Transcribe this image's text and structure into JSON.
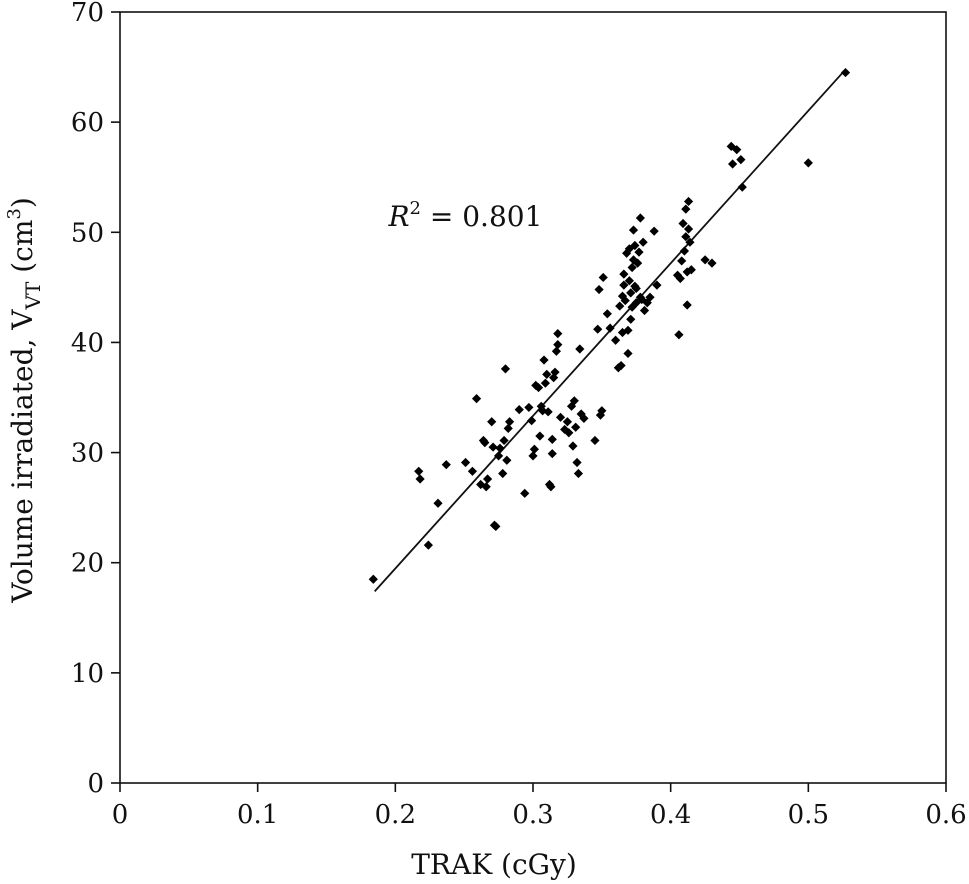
{
  "chart_data": {
    "type": "scatter",
    "title": "",
    "xlabel": "TRAK (cGy)",
    "ylabel_main": "Volume irradiated, V",
    "ylabel_sub": "VT",
    "ylabel_unit_open": " (cm",
    "ylabel_unit_sup": "3",
    "ylabel_unit_close": ")",
    "xlim": [
      0,
      0.6
    ],
    "ylim": [
      0,
      70
    ],
    "xticks": [
      0,
      0.1,
      0.2,
      0.3,
      0.4,
      0.5,
      0.6
    ],
    "xtick_labels": [
      "0",
      "0.1",
      "0.2",
      "0.3",
      "0.4",
      "0.5",
      "0.6"
    ],
    "yticks": [
      0,
      10,
      20,
      30,
      40,
      50,
      60,
      70
    ],
    "ytick_labels": [
      "0",
      "10",
      "20",
      "30",
      "40",
      "50",
      "60",
      "70"
    ],
    "grid": false,
    "annotation": {
      "r_symbol": "R",
      "r_sup": "2",
      "text": " = 0.801",
      "x": 0.195,
      "y": 51.5
    },
    "trendline": {
      "x": [
        0.185,
        0.525
      ],
      "y": [
        17.4,
        64.5
      ]
    },
    "points": [
      [
        0.184,
        18.5
      ],
      [
        0.217,
        28.3
      ],
      [
        0.218,
        27.6
      ],
      [
        0.224,
        21.6
      ],
      [
        0.231,
        25.4
      ],
      [
        0.237,
        28.9
      ],
      [
        0.251,
        29.1
      ],
      [
        0.256,
        28.3
      ],
      [
        0.259,
        34.9
      ],
      [
        0.262,
        27.1
      ],
      [
        0.264,
        31.1
      ],
      [
        0.265,
        30.9
      ],
      [
        0.266,
        26.9
      ],
      [
        0.267,
        27.6
      ],
      [
        0.27,
        32.8
      ],
      [
        0.271,
        30.5
      ],
      [
        0.272,
        23.4
      ],
      [
        0.273,
        23.3
      ],
      [
        0.275,
        29.7
      ],
      [
        0.276,
        30.4
      ],
      [
        0.278,
        28.1
      ],
      [
        0.279,
        31.1
      ],
      [
        0.28,
        37.6
      ],
      [
        0.281,
        29.3
      ],
      [
        0.282,
        32.2
      ],
      [
        0.283,
        32.8
      ],
      [
        0.29,
        33.9
      ],
      [
        0.294,
        26.3
      ],
      [
        0.297,
        34.1
      ],
      [
        0.299,
        32.9
      ],
      [
        0.3,
        29.7
      ],
      [
        0.301,
        30.3
      ],
      [
        0.302,
        36.1
      ],
      [
        0.304,
        35.9
      ],
      [
        0.305,
        31.5
      ],
      [
        0.306,
        34.2
      ],
      [
        0.307,
        33.8
      ],
      [
        0.308,
        38.4
      ],
      [
        0.309,
        36.3
      ],
      [
        0.31,
        37.1
      ],
      [
        0.311,
        33.7
      ],
      [
        0.312,
        27.1
      ],
      [
        0.313,
        26.9
      ],
      [
        0.314,
        29.9
      ],
      [
        0.314,
        31.2
      ],
      [
        0.315,
        36.8
      ],
      [
        0.316,
        37.3
      ],
      [
        0.317,
        39.2
      ],
      [
        0.318,
        39.8
      ],
      [
        0.318,
        40.8
      ],
      [
        0.32,
        33.2
      ],
      [
        0.323,
        32.1
      ],
      [
        0.325,
        32.8
      ],
      [
        0.326,
        31.8
      ],
      [
        0.328,
        34.2
      ],
      [
        0.329,
        30.6
      ],
      [
        0.33,
        34.7
      ],
      [
        0.331,
        32.3
      ],
      [
        0.332,
        29.1
      ],
      [
        0.333,
        28.1
      ],
      [
        0.334,
        39.4
      ],
      [
        0.335,
        33.5
      ],
      [
        0.337,
        33.1
      ],
      [
        0.345,
        31.1
      ],
      [
        0.347,
        41.2
      ],
      [
        0.348,
        44.8
      ],
      [
        0.349,
        33.4
      ],
      [
        0.35,
        33.8
      ],
      [
        0.351,
        45.9
      ],
      [
        0.354,
        42.6
      ],
      [
        0.356,
        41.3
      ],
      [
        0.36,
        40.2
      ],
      [
        0.362,
        37.7
      ],
      [
        0.363,
        43.3
      ],
      [
        0.364,
        37.9
      ],
      [
        0.365,
        40.9
      ],
      [
        0.365,
        44.2
      ],
      [
        0.366,
        45.2
      ],
      [
        0.366,
        46.2
      ],
      [
        0.367,
        43.8
      ],
      [
        0.368,
        48.1
      ],
      [
        0.369,
        41.1
      ],
      [
        0.369,
        39.0
      ],
      [
        0.37,
        45.6
      ],
      [
        0.37,
        48.5
      ],
      [
        0.371,
        42.1
      ],
      [
        0.371,
        44.5
      ],
      [
        0.372,
        43.2
      ],
      [
        0.372,
        46.8
      ],
      [
        0.373,
        50.2
      ],
      [
        0.373,
        47.5
      ],
      [
        0.374,
        45.1
      ],
      [
        0.374,
        48.8
      ],
      [
        0.375,
        43.6
      ],
      [
        0.375,
        44.9
      ],
      [
        0.376,
        47.2
      ],
      [
        0.377,
        48.2
      ],
      [
        0.378,
        51.3
      ],
      [
        0.378,
        44.1
      ],
      [
        0.379,
        43.9
      ],
      [
        0.38,
        49.1
      ],
      [
        0.381,
        42.9
      ],
      [
        0.383,
        43.6
      ],
      [
        0.385,
        44.1
      ],
      [
        0.388,
        50.1
      ],
      [
        0.39,
        45.2
      ],
      [
        0.405,
        46.1
      ],
      [
        0.406,
        40.7
      ],
      [
        0.407,
        45.8
      ],
      [
        0.408,
        47.4
      ],
      [
        0.409,
        50.8
      ],
      [
        0.41,
        48.3
      ],
      [
        0.411,
        49.6
      ],
      [
        0.411,
        52.1
      ],
      [
        0.412,
        46.4
      ],
      [
        0.412,
        43.4
      ],
      [
        0.413,
        52.8
      ],
      [
        0.413,
        50.3
      ],
      [
        0.414,
        49.1
      ],
      [
        0.415,
        46.6
      ],
      [
        0.425,
        47.5
      ],
      [
        0.43,
        47.2
      ],
      [
        0.444,
        57.8
      ],
      [
        0.445,
        56.2
      ],
      [
        0.448,
        57.5
      ],
      [
        0.451,
        56.6
      ],
      [
        0.452,
        54.1
      ],
      [
        0.5,
        56.3
      ],
      [
        0.527,
        64.5
      ]
    ]
  }
}
